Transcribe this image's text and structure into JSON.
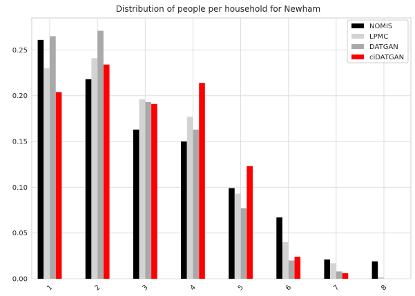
{
  "chart_data": {
    "type": "bar",
    "title": "Distribution of people per household for Newham",
    "xlabel": "",
    "ylabel": "",
    "categories": [
      "1",
      "2",
      "3",
      "4",
      "5",
      "6",
      "7",
      "8"
    ],
    "ylim": [
      0,
      0.285
    ],
    "yticks": [
      "0.00",
      "0.05",
      "0.10",
      "0.15",
      "0.20",
      "0.25"
    ],
    "grid": true,
    "legend_position": "top-right",
    "series": [
      {
        "name": "NOMIS",
        "color": "#000000",
        "values": [
          0.261,
          0.218,
          0.163,
          0.15,
          0.099,
          0.067,
          0.021,
          0.019
        ]
      },
      {
        "name": "LPMC",
        "color": "#d3d3d3",
        "values": [
          0.23,
          0.241,
          0.196,
          0.177,
          0.093,
          0.04,
          0.017,
          0.002
        ]
      },
      {
        "name": "DATGAN",
        "color": "#a9a9a9",
        "values": [
          0.265,
          0.271,
          0.193,
          0.163,
          0.077,
          0.02,
          0.008,
          0.0
        ]
      },
      {
        "name": "ciDATGAN",
        "color": "#ff0000",
        "values": [
          0.204,
          0.234,
          0.191,
          0.214,
          0.123,
          0.024,
          0.006,
          0.0
        ]
      }
    ]
  }
}
